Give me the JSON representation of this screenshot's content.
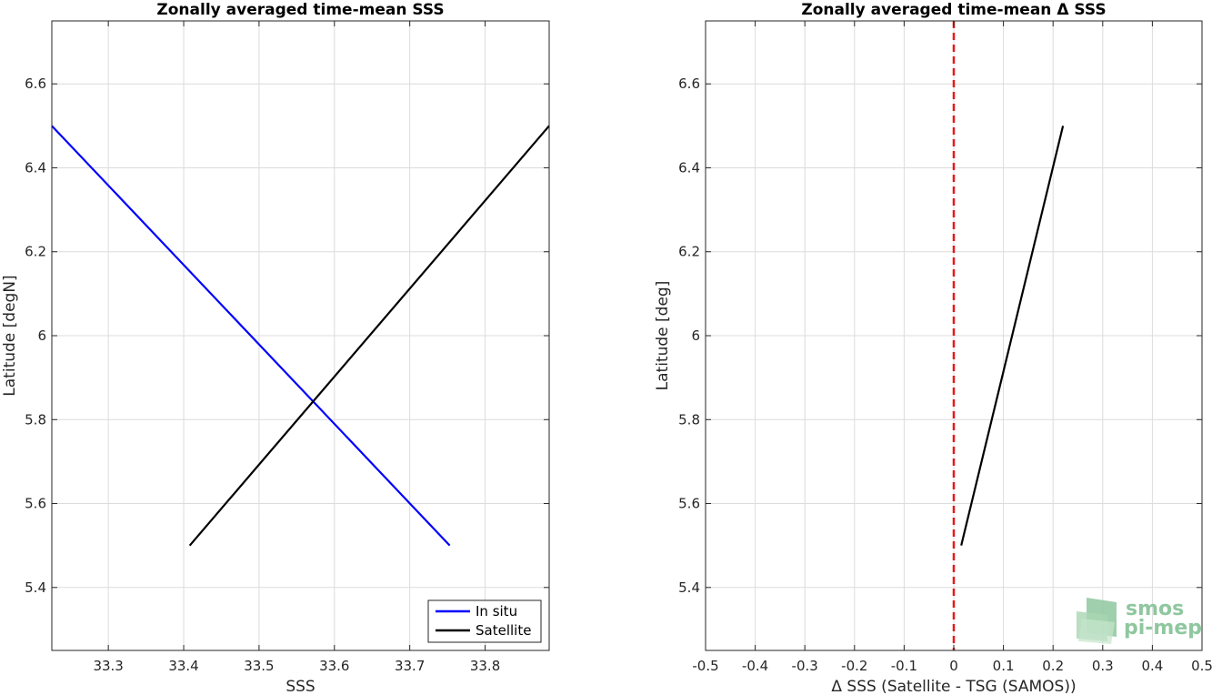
{
  "chart_data": [
    {
      "type": "line",
      "title": "Zonally averaged time-mean SSS",
      "xlabel": "SSS",
      "ylabel": "Latitude [degN]",
      "xlim": [
        33.225,
        33.885
      ],
      "ylim": [
        5.25,
        6.75
      ],
      "xticks": [
        33.3,
        33.4,
        33.5,
        33.6,
        33.7,
        33.8
      ],
      "xtick_labels": [
        "33.3",
        "33.4",
        "33.5",
        "33.6",
        "33.7",
        "33.8"
      ],
      "yticks": [
        5.4,
        5.6,
        5.8,
        6.0,
        6.2,
        6.4,
        6.6
      ],
      "ytick_labels": [
        "5.4",
        "5.6",
        "5.8",
        "6",
        "6.2",
        "6.4",
        "6.6"
      ],
      "grid": true,
      "legend_position": "bottom-right",
      "series": [
        {
          "name": "In situ",
          "color": "#0000ff",
          "x": [
            33.225,
            33.753
          ],
          "y": [
            6.5,
            5.5
          ]
        },
        {
          "name": "Satellite",
          "color": "#000000",
          "x": [
            33.408,
            33.885
          ],
          "y": [
            5.5,
            6.5
          ]
        }
      ]
    },
    {
      "type": "line",
      "title": "Zonally averaged time-mean Δ SSS",
      "xlabel": "Δ SSS (Satellite - TSG (SAMOS))",
      "ylabel": "Latitude [deg]",
      "xlim": [
        -0.5,
        0.5
      ],
      "ylim": [
        5.25,
        6.75
      ],
      "xticks": [
        -0.5,
        -0.4,
        -0.3,
        -0.2,
        -0.1,
        0,
        0.1,
        0.2,
        0.3,
        0.4,
        0.5
      ],
      "xtick_labels": [
        "-0.5",
        "-0.4",
        "-0.3",
        "-0.2",
        "-0.1",
        "0",
        "0.1",
        "0.2",
        "0.3",
        "0.4",
        "0.5"
      ],
      "yticks": [
        5.4,
        5.6,
        5.8,
        6.0,
        6.2,
        6.4,
        6.6
      ],
      "ytick_labels": [
        "5.4",
        "5.6",
        "5.8",
        "6",
        "6.2",
        "6.4",
        "6.6"
      ],
      "grid": true,
      "reference_line": {
        "x": 0,
        "color": "#e41a1c",
        "style": "dashed"
      },
      "series": [
        {
          "color": "#000000",
          "x": [
            0.015,
            0.22
          ],
          "y": [
            5.5,
            6.5
          ]
        }
      ]
    }
  ],
  "logo": {
    "line1": "smos",
    "line2": "pi-mep",
    "color": "#8fc79f"
  }
}
